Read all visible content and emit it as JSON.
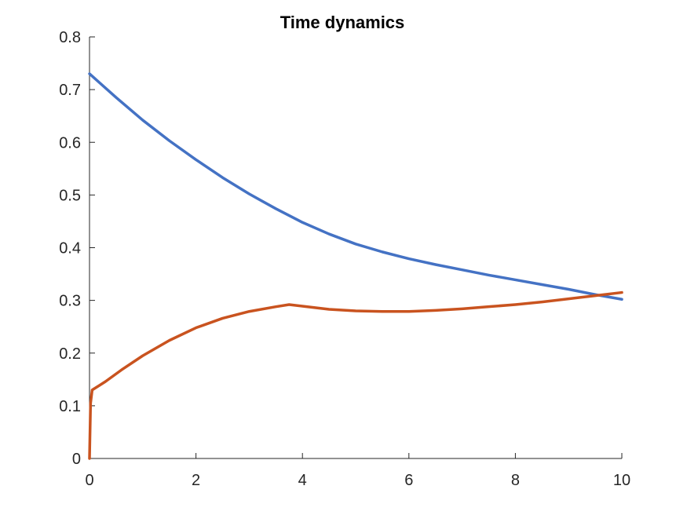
{
  "chart_data": {
    "type": "line",
    "title": "Time dynamics",
    "xlabel": "",
    "ylabel": "",
    "xlim": [
      0,
      10
    ],
    "ylim": [
      0,
      0.8
    ],
    "xticks": [
      0,
      2,
      4,
      6,
      8,
      10
    ],
    "xtick_labels": [
      "0",
      "2",
      "4",
      "6",
      "8",
      "10"
    ],
    "yticks": [
      0,
      0.1,
      0.2,
      0.3,
      0.4,
      0.5,
      0.6,
      0.7,
      0.8
    ],
    "ytick_labels": [
      "0",
      "0.1",
      "0.2",
      "0.3",
      "0.4",
      "0.5",
      "0.6",
      "0.7",
      "0.8"
    ],
    "grid": false,
    "legend": "none",
    "series": [
      {
        "color": "#4472C4",
        "x": [
          0,
          0.5,
          1,
          1.5,
          2,
          2.5,
          3,
          3.5,
          4,
          4.5,
          5,
          5.5,
          6,
          6.5,
          7,
          7.5,
          8,
          8.5,
          9,
          9.5,
          10
        ],
        "y": [
          0.73,
          0.685,
          0.642,
          0.603,
          0.567,
          0.533,
          0.502,
          0.474,
          0.448,
          0.426,
          0.407,
          0.392,
          0.379,
          0.368,
          0.358,
          0.348,
          0.339,
          0.33,
          0.321,
          0.311,
          0.302
        ]
      },
      {
        "color": "#C9531F",
        "x": [
          0,
          0.02,
          0.05,
          0.3,
          0.6,
          1,
          1.5,
          2,
          2.5,
          3,
          3.5,
          3.75,
          4,
          4.5,
          5,
          5.5,
          6,
          6.5,
          7,
          7.5,
          8,
          8.5,
          9,
          9.5,
          10
        ],
        "y": [
          0,
          0.105,
          0.13,
          0.146,
          0.168,
          0.195,
          0.224,
          0.248,
          0.266,
          0.279,
          0.288,
          0.292,
          0.289,
          0.283,
          0.28,
          0.279,
          0.279,
          0.281,
          0.284,
          0.288,
          0.292,
          0.297,
          0.303,
          0.309,
          0.315
        ]
      }
    ]
  }
}
